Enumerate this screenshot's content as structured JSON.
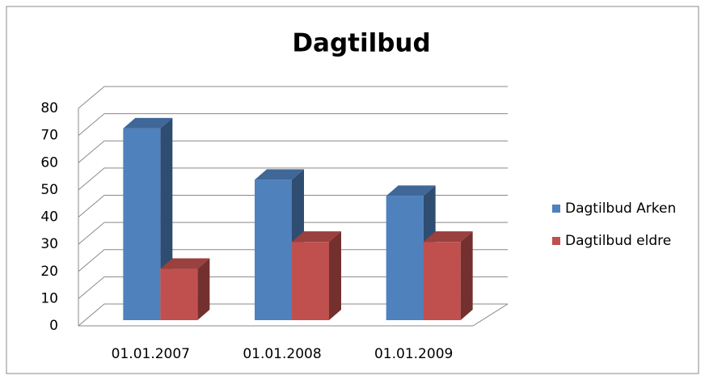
{
  "chart_data": {
    "type": "bar3d",
    "title": "Dagtilbud",
    "categories": [
      "01.01.2007",
      "01.01.2008",
      "01.01.2009"
    ],
    "series": [
      {
        "name": "Dagtilbud Arken",
        "color": "#4f81bd",
        "values": [
          71,
          52,
          46
        ]
      },
      {
        "name": "Dagtilbud eldre",
        "color": "#c0504d",
        "values": [
          19,
          29,
          29
        ]
      }
    ],
    "ylim": [
      0,
      80
    ],
    "yticks": [
      0,
      10,
      20,
      30,
      40,
      50,
      60,
      70,
      80
    ],
    "grid": true,
    "legend": "right"
  }
}
